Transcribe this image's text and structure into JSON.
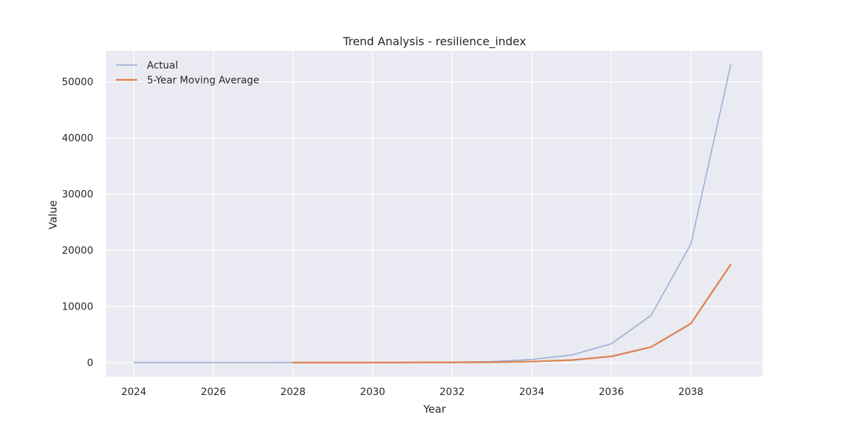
{
  "chart_data": {
    "type": "line",
    "title": "Trend Analysis - resilience_index",
    "xlabel": "Year",
    "ylabel": "Value",
    "xlim": [
      2023.3,
      2039.8
    ],
    "ylim": [
      -2500,
      55500
    ],
    "xticks": [
      2024,
      2026,
      2028,
      2030,
      2032,
      2034,
      2036,
      2038
    ],
    "xtick_labels": [
      "2024",
      "2026",
      "2028",
      "2030",
      "2032",
      "2034",
      "2036",
      "2038"
    ],
    "yticks": [
      0,
      10000,
      20000,
      30000,
      40000,
      50000
    ],
    "ytick_labels": [
      "0",
      "10000",
      "20000",
      "30000",
      "40000",
      "50000"
    ],
    "grid": true,
    "legend_position": "top-left",
    "series": [
      {
        "name": "Actual",
        "color": "#9fb0d6",
        "x": [
          2024,
          2025,
          2026,
          2027,
          2028,
          2029,
          2030,
          2031,
          2032,
          2033,
          2034,
          2035,
          2036,
          2037,
          2038,
          2039
        ],
        "y": [
          3,
          4,
          6,
          8,
          12,
          18,
          28,
          45,
          80,
          200,
          550,
          1350,
          3350,
          8400,
          21100,
          53000
        ]
      },
      {
        "name": "5-Year Moving Average",
        "color": "#dd8452",
        "x": [
          2028,
          2029,
          2030,
          2031,
          2032,
          2033,
          2034,
          2035,
          2036,
          2037,
          2038,
          2039
        ],
        "y": [
          7,
          10,
          14,
          22,
          37,
          74,
          181,
          445,
          1107,
          2770,
          6950,
          17450
        ]
      }
    ]
  }
}
